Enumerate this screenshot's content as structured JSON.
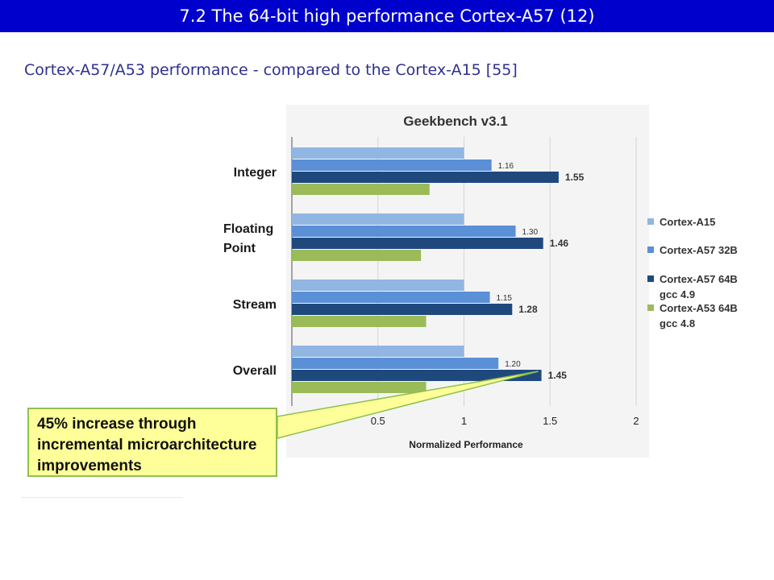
{
  "header": {
    "title": "7.2 The 64-bit high performance Cortex-A57 (12)",
    "subtitle": "Cortex-A57/A53 performance -  compared to the Cortex-A15 [55]"
  },
  "callout": {
    "text": "45% increase through\nincremental microarchitecture\nimprovements"
  },
  "chart_data": {
    "type": "bar",
    "orientation": "horizontal",
    "title": "Geekbench v3.1",
    "xlabel": "Normalized Performance",
    "ylabel": "",
    "xlim": [
      0,
      2
    ],
    "xticks": [
      "0",
      "0.5",
      "1",
      "1.5",
      "2"
    ],
    "categories": [
      "Integer",
      "Floating Point",
      "Stream",
      "Overall"
    ],
    "category_labels": [
      [
        "Integer"
      ],
      [
        "Floating",
        "Point"
      ],
      [
        "Stream"
      ],
      [
        "Overall"
      ]
    ],
    "series": [
      {
        "name": "Cortex-A15",
        "legend_lines": [
          "Cortex-A15"
        ],
        "color": "#92b6e2",
        "values": [
          1.0,
          1.0,
          1.0,
          1.0
        ],
        "labels": [
          "",
          "",
          "",
          ""
        ]
      },
      {
        "name": "Cortex-A57 32B",
        "legend_lines": [
          "Cortex-A57 32B"
        ],
        "color": "#5b8fd6",
        "values": [
          1.16,
          1.3,
          1.15,
          1.2
        ],
        "labels": [
          "1.16",
          "1.30",
          "1.15",
          "1.20"
        ]
      },
      {
        "name": "Cortex-A57 64B gcc 4.9",
        "legend_lines": [
          "Cortex-A57 64B",
          "gcc 4.9"
        ],
        "color": "#1f497d",
        "values": [
          1.55,
          1.46,
          1.28,
          1.45
        ],
        "labels": [
          "1.55",
          "1.46",
          "1.28",
          "1.45"
        ]
      },
      {
        "name": "Cortex-A53 64B gcc 4.8",
        "legend_lines": [
          "Cortex-A53 64B",
          "gcc 4.8"
        ],
        "color": "#9bbb59",
        "values": [
          0.8,
          0.75,
          0.78,
          0.78
        ],
        "labels": [
          "",
          "",
          "",
          ""
        ]
      }
    ],
    "grid": true,
    "legend": "right"
  }
}
